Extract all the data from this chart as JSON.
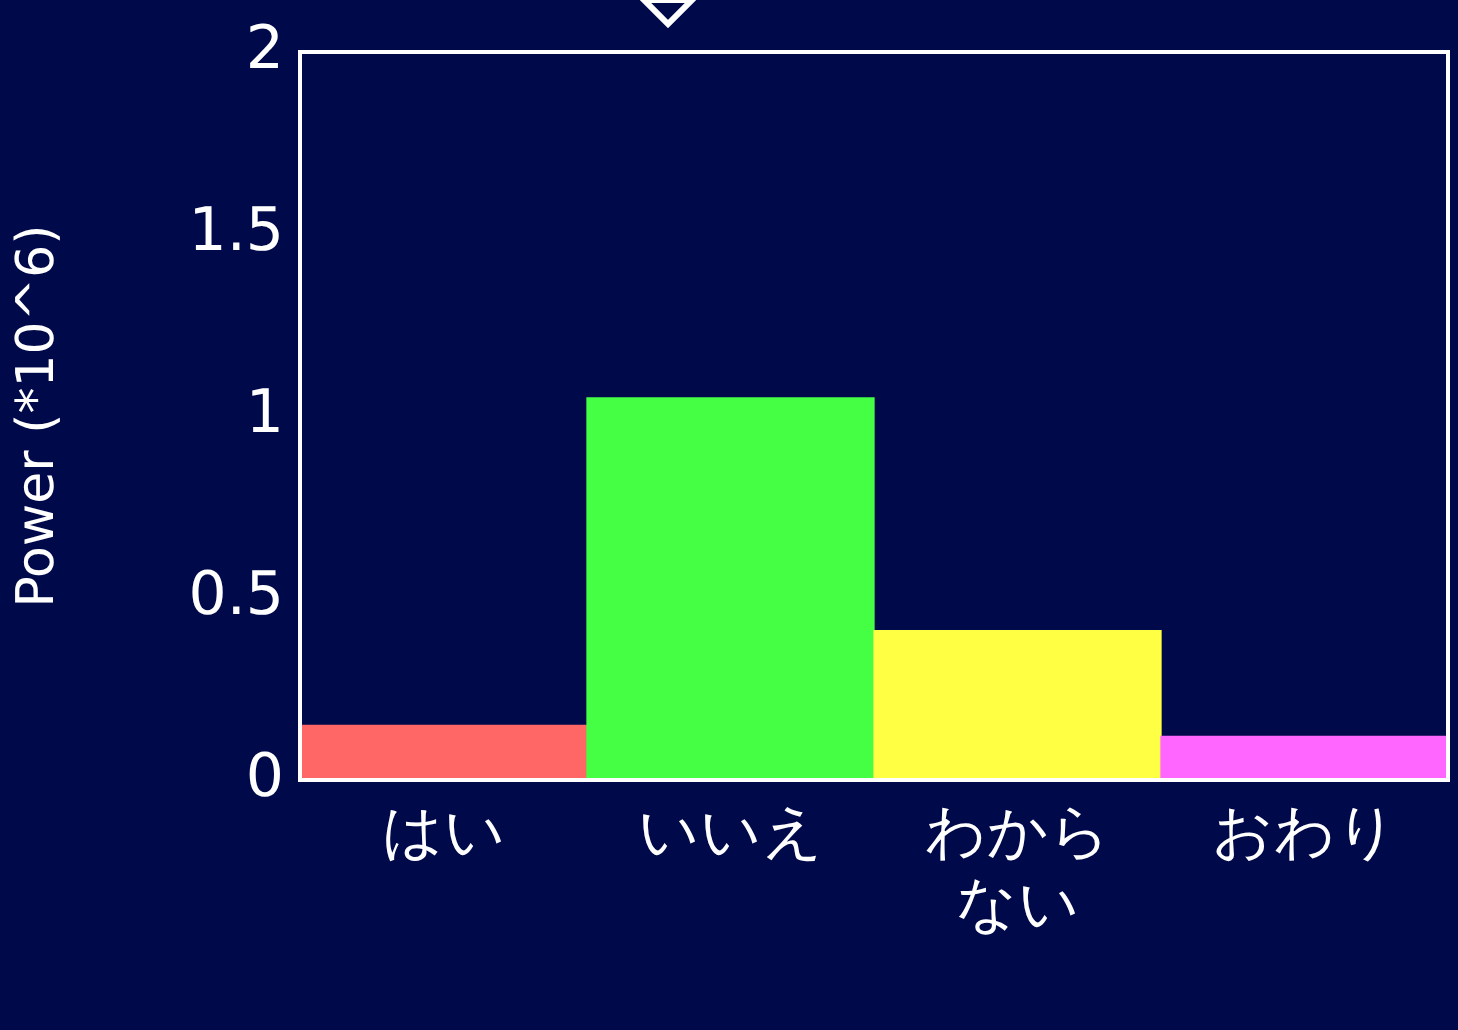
{
  "chart_data": {
    "type": "bar",
    "ylabel": "Power (*10^6)",
    "categories": [
      "はい",
      "いいえ",
      "わからない",
      "おわり"
    ],
    "values": [
      0.15,
      1.05,
      0.41,
      0.12
    ],
    "colors": [
      "#ff6666",
      "#44ff44",
      "#ffff44",
      "#ff66ff"
    ],
    "ylim": [
      0,
      2
    ],
    "yticks": [
      0,
      0.5,
      1,
      1.5,
      2
    ],
    "grid": false,
    "legend": false
  }
}
